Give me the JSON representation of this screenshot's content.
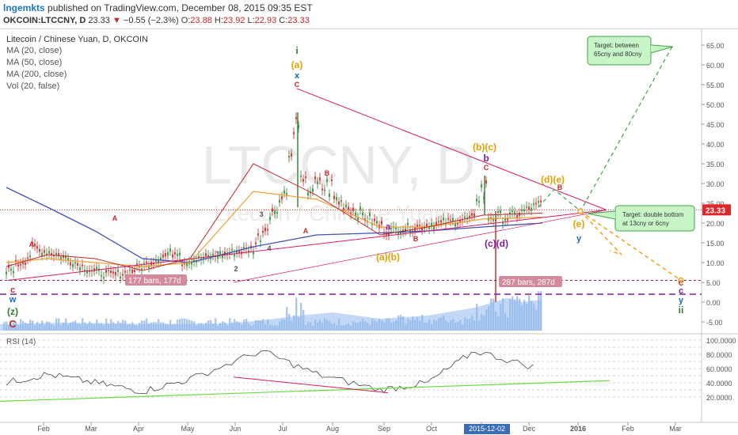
{
  "header": {
    "author": "lngemkts",
    "published": "published on TradingView.com, December 08, 2015 09:35 EST",
    "symbol": "OKCOIN:LTCCNY, D",
    "last": "23.33",
    "change": "−0.55 (−2.3%)",
    "open_label": "O:",
    "open": "23.88",
    "high_label": "H:",
    "high": "23.92",
    "low_label": "L:",
    "low": "22.93",
    "close_label": "C:",
    "close": "23.33"
  },
  "legend": {
    "title": "Litecoin / Chinese Yuan, D, OKCOIN",
    "items": [
      "MA (20, close)",
      "MA (50, close)",
      "MA (200, close)",
      "Vol (20, false)"
    ]
  },
  "watermark": {
    "big": "LTCCNY, D",
    "small": "Litecoin / Chinese Yuan"
  },
  "price_axis": {
    "ticks": [
      "65.00",
      "60.00",
      "55.00",
      "50.00",
      "45.00",
      "40.00",
      "35.00",
      "30.00",
      "25.00",
      "20.00",
      "15.00",
      "10.00",
      "5.00",
      "0.00",
      "-5.00"
    ],
    "last_label": "23.33",
    "last_color": "#e0262b"
  },
  "rsi_axis": {
    "title": "RSI (14)",
    "ticks": [
      "100.0000",
      "80.0000",
      "60.0000",
      "40.0000",
      "20.0000"
    ]
  },
  "time_axis": {
    "labels": [
      "Feb",
      "Mar",
      "Apr",
      "May",
      "Jun",
      "Jul",
      "Aug",
      "Sep",
      "Oct",
      "Nov",
      "Dec",
      "2016",
      "Feb",
      "Mar"
    ],
    "highlight": "2015-12-02"
  },
  "measures": [
    {
      "text": "177 bars, 177d"
    },
    {
      "text": "287 bars, 287d"
    }
  ],
  "callouts": [
    {
      "text": [
        "Target: between",
        "65cny and 80cny"
      ]
    },
    {
      "text": [
        "Target: double bottom",
        "at  13cny or 6cny"
      ]
    }
  ],
  "wave_labels": {
    "left": [
      "c",
      "w",
      "(z)",
      "C"
    ],
    "top": [
      "i",
      "(a)",
      "x",
      "C"
    ],
    "bc_b": "(b)(c)",
    "bc_b2": "b",
    "bc_c": "C",
    "mid": [
      "a",
      "(a)(b)"
    ],
    "cd": "(c)(d)",
    "de": "(d)(e)",
    "de_b": "B",
    "e": "(e)",
    "y": "y",
    "right": [
      "C",
      "c",
      "y",
      "ii"
    ],
    "small": [
      "A",
      "A",
      "B",
      "3",
      "4",
      "A",
      "B",
      "1",
      "2"
    ]
  },
  "colors": {
    "accent": "#e0262b",
    "ma20": "#c62828",
    "ma50": "#f0a030",
    "ma200": "#3f51b5",
    "trend": "#d81b60",
    "up_path": "#43a047",
    "down_path": "#f39c12"
  },
  "chart_data": [
    {
      "type": "line",
      "title": "Litecoin / Chinese Yuan, D, OKCOIN",
      "xlabel": "",
      "ylabel": "",
      "x": [
        "Feb",
        "Mar",
        "Apr",
        "May",
        "Jun",
        "Jul",
        "Aug",
        "Sep",
        "Oct",
        "Nov",
        "Dec"
      ],
      "series": [
        {
          "name": "price",
          "values": [
            9,
            12,
            11,
            8,
            11,
            48,
            31,
            16,
            19,
            24,
            23.3
          ]
        },
        {
          "name": "MA (20, close)",
          "values": [
            9,
            12,
            11,
            8,
            11,
            35,
            27,
            17,
            19,
            22,
            22.5
          ]
        },
        {
          "name": "MA (50, close)",
          "values": [
            10,
            11,
            10,
            9,
            10,
            28,
            26,
            19,
            19,
            21,
            21.5
          ]
        },
        {
          "name": "MA (200, close)",
          "values": [
            29,
            24,
            18,
            11,
            10,
            14,
            17,
            17.5,
            18,
            19,
            20
          ]
        }
      ],
      "ylim": [
        -5,
        65
      ],
      "annotations": [
        "177 bars, 177d",
        "287 bars, 287d",
        "Target: between 65cny and 80cny",
        "Target: double bottom at 13cny or 6cny"
      ]
    },
    {
      "type": "line",
      "title": "RSI (14)",
      "x": [
        "Feb",
        "Mar",
        "Apr",
        "May",
        "Jun",
        "Jul",
        "Aug",
        "Sep",
        "Oct",
        "Nov",
        "Dec"
      ],
      "series": [
        {
          "name": "RSI (14)",
          "values": [
            40,
            52,
            40,
            28,
            45,
            85,
            52,
            30,
            40,
            85,
            60
          ]
        }
      ],
      "ylim": [
        10,
        100
      ]
    }
  ]
}
